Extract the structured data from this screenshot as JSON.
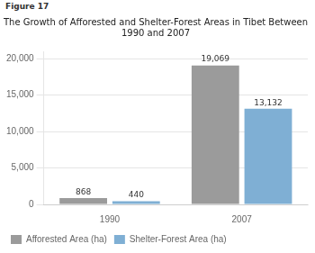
{
  "chart_data": {
    "type": "bar",
    "title": [
      "The Growth of Afforested and Shelter-Forest Areas in Tibet Between",
      "1990 and 2007"
    ],
    "annotations": [
      "Figure 17"
    ],
    "categories": [
      "1990",
      "2007"
    ],
    "series": [
      {
        "name": "Afforested Area (ha)",
        "color": "#9b9b9b",
        "values": [
          868,
          19069
        ],
        "value_labels": [
          "868",
          "19,069"
        ]
      },
      {
        "name": "Shelter-Forest Area (ha)",
        "color": "#7fafd4",
        "values": [
          440,
          13132
        ],
        "value_labels": [
          "440",
          "13,132"
        ]
      }
    ],
    "ylim": [
      0,
      21000
    ],
    "yticks": [
      0,
      {
        "value": 5000,
        "label": "5,000"
      },
      {
        "value": 10000,
        "label": "10,000"
      },
      {
        "value": 15000,
        "label": "15,000"
      },
      {
        "value": 20000,
        "label": "20,000"
      }
    ],
    "grid": true,
    "legend": "bottom",
    "data_labels": true
  }
}
